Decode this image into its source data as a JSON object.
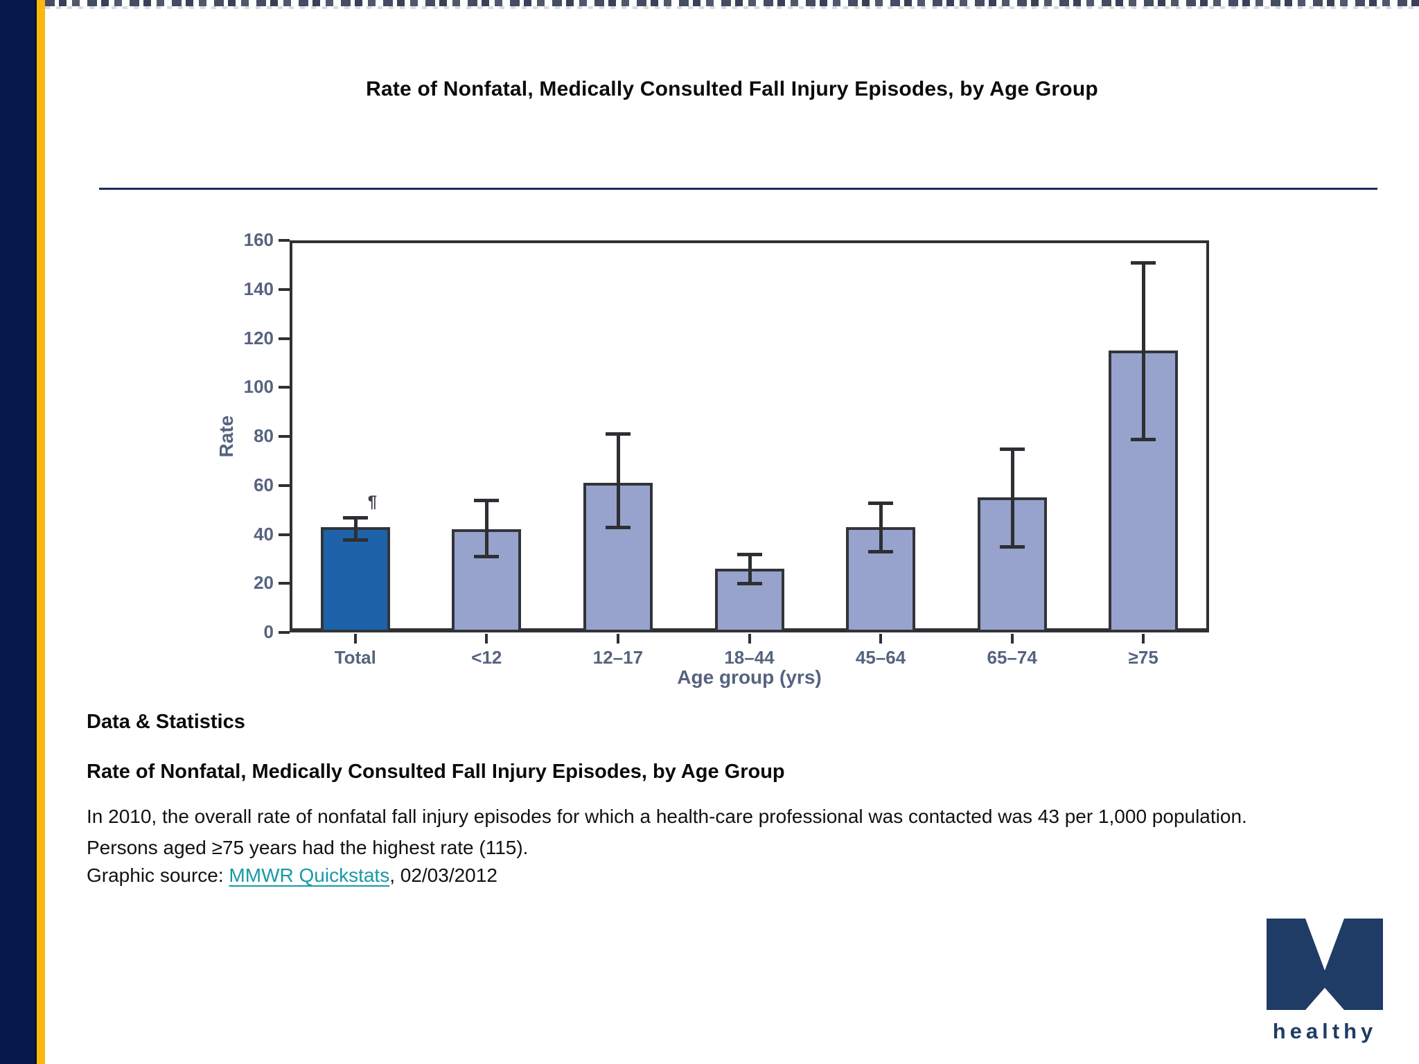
{
  "page": {
    "title": "Rate of Nonfatal, Medically Consulted Fall Injury Episodes, by Age Group"
  },
  "chart_data": {
    "type": "bar",
    "title": "",
    "xlabel": "Age group (yrs)",
    "ylabel": "Rate",
    "ylim": [
      0,
      160
    ],
    "yticks": [
      0,
      20,
      40,
      60,
      80,
      100,
      120,
      140,
      160
    ],
    "categories": [
      "Total",
      "<12",
      "12–17",
      "18–44",
      "45–64",
      "65–74",
      "≥75"
    ],
    "values": [
      43,
      42,
      61,
      26,
      43,
      55,
      115
    ],
    "error_low": [
      38,
      31,
      43,
      20,
      33,
      35,
      79
    ],
    "error_high": [
      47,
      54,
      81,
      32,
      53,
      75,
      151
    ],
    "highlight_index": 0,
    "footnote_marker": "¶",
    "footnote_target_index": 0,
    "grid": false,
    "legend": "none"
  },
  "body": {
    "section_heading": "Data & Statistics",
    "subheading": "Rate of Nonfatal, Medically Consulted Fall Injury Episodes, by Age Group",
    "paragraph": "In 2010, the overall rate of nonfatal fall injury episodes for which a health-care professional was contacted was 43 per 1,000 population. Persons aged ≥75 years had the highest rate (115).",
    "source_prefix": "Graphic source: ",
    "source_link": "MMWR Quickstats",
    "source_suffix": ", 02/03/2012"
  },
  "logo": {
    "word": "healthy"
  },
  "colors": {
    "navy_bar": "#06194a",
    "gold_stripe": "#fbb80d",
    "divider_navy": "#1b2a63",
    "bar_highlight": "#1e63a9",
    "bar_fill": "#97a3cc",
    "bar_border": "#32343a",
    "error_bar": "#2d2f33",
    "axis_text": "#56637f",
    "link_teal": "#1799a6",
    "logo_navy": "#1e3c66"
  }
}
